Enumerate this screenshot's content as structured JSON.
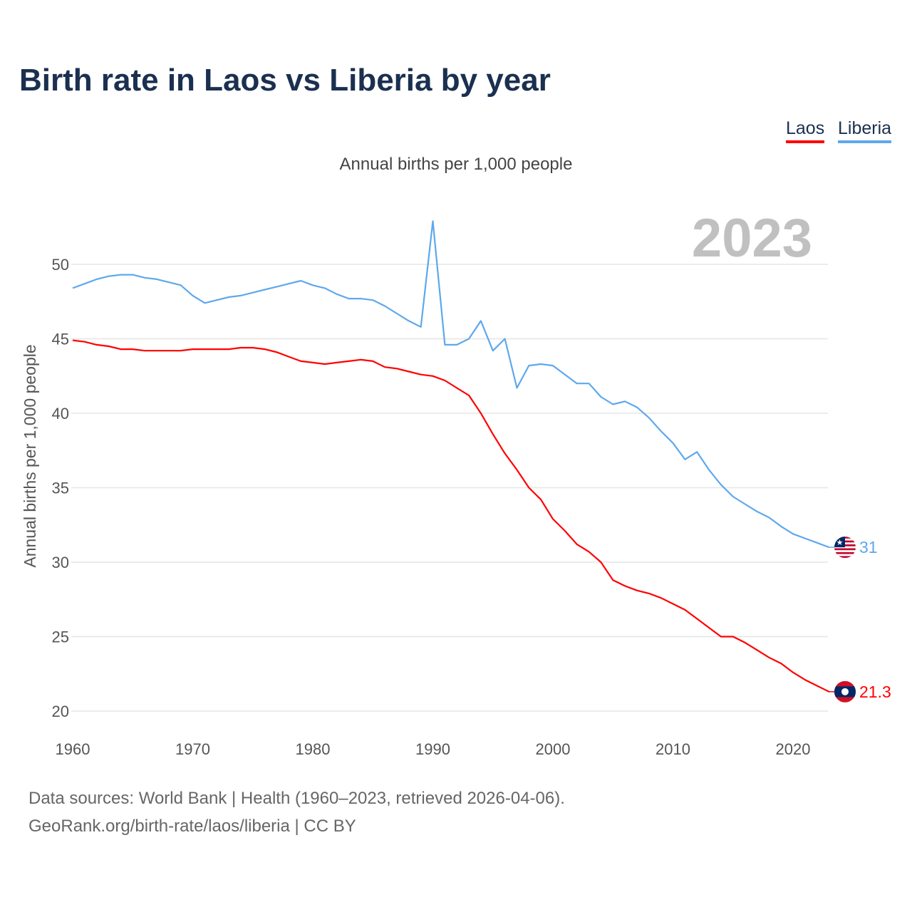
{
  "title": "Birth rate in Laos vs Liberia by year",
  "legend": [
    {
      "label": "Laos",
      "color": "#ff0000"
    },
    {
      "label": "Liberia",
      "color": "#5ea8ec"
    }
  ],
  "footer": {
    "line1": "Data sources: World Bank | Health (1960–2023, retrieved 2026-04-06).",
    "line2": "GeoRank.org/birth-rate/laos/liberia | CC BY"
  },
  "chart_data": {
    "type": "line",
    "title": "Birth rate in Laos vs Liberia by year",
    "subtitle": "Annual births per 1,000 people",
    "year_label": "2023",
    "xlabel": "",
    "ylabel": "Annual births per 1,000 people",
    "xlim": [
      1960,
      2023
    ],
    "ylim": [
      20,
      53
    ],
    "xticks": [
      1960,
      1970,
      1980,
      1990,
      2000,
      2010,
      2020
    ],
    "yticks": [
      20,
      25,
      30,
      35,
      40,
      45,
      50
    ],
    "grid": true,
    "legend_position": "top-right",
    "x": [
      1960,
      1961,
      1962,
      1963,
      1964,
      1965,
      1966,
      1967,
      1968,
      1969,
      1970,
      1971,
      1972,
      1973,
      1974,
      1975,
      1976,
      1977,
      1978,
      1979,
      1980,
      1981,
      1982,
      1983,
      1984,
      1985,
      1986,
      1987,
      1988,
      1989,
      1990,
      1991,
      1992,
      1993,
      1994,
      1995,
      1996,
      1997,
      1998,
      1999,
      2000,
      2001,
      2002,
      2003,
      2004,
      2005,
      2006,
      2007,
      2008,
      2009,
      2010,
      2011,
      2012,
      2013,
      2014,
      2015,
      2016,
      2017,
      2018,
      2019,
      2020,
      2021,
      2022,
      2023
    ],
    "series": [
      {
        "name": "Laos",
        "color": "#ff0000",
        "end_label": "21.3",
        "flag": "laos-flag",
        "values": [
          44.9,
          44.8,
          44.6,
          44.5,
          44.3,
          44.3,
          44.2,
          44.2,
          44.2,
          44.2,
          44.3,
          44.3,
          44.3,
          44.3,
          44.4,
          44.4,
          44.3,
          44.1,
          43.8,
          43.5,
          43.4,
          43.3,
          43.4,
          43.5,
          43.6,
          43.5,
          43.1,
          43.0,
          42.8,
          42.6,
          42.5,
          42.2,
          41.7,
          41.2,
          40.0,
          38.6,
          37.3,
          36.2,
          35.0,
          34.2,
          32.9,
          32.1,
          31.2,
          30.7,
          30.0,
          28.8,
          28.4,
          28.1,
          27.9,
          27.6,
          27.2,
          26.8,
          26.2,
          25.6,
          25.0,
          25.0,
          24.6,
          24.1,
          23.6,
          23.2,
          22.6,
          22.1,
          21.7,
          21.3
        ]
      },
      {
        "name": "Liberia",
        "color": "#5ea8ec",
        "end_label": "31",
        "flag": "liberia-flag",
        "values": [
          48.4,
          48.7,
          49.0,
          49.2,
          49.3,
          49.3,
          49.1,
          49.0,
          48.8,
          48.6,
          47.9,
          47.4,
          47.6,
          47.8,
          47.9,
          48.1,
          48.3,
          48.5,
          48.7,
          48.9,
          48.6,
          48.4,
          48.0,
          47.7,
          47.7,
          47.6,
          47.2,
          46.7,
          46.2,
          45.8,
          52.9,
          44.6,
          44.6,
          45.0,
          46.2,
          44.2,
          45.0,
          41.7,
          43.2,
          43.3,
          43.2,
          42.6,
          42.0,
          42.0,
          41.1,
          40.6,
          40.8,
          40.4,
          39.7,
          38.8,
          38.0,
          36.9,
          37.4,
          36.2,
          35.2,
          34.4,
          33.9,
          33.4,
          33.0,
          32.4,
          31.9,
          31.6,
          31.3,
          31.0
        ]
      }
    ]
  }
}
